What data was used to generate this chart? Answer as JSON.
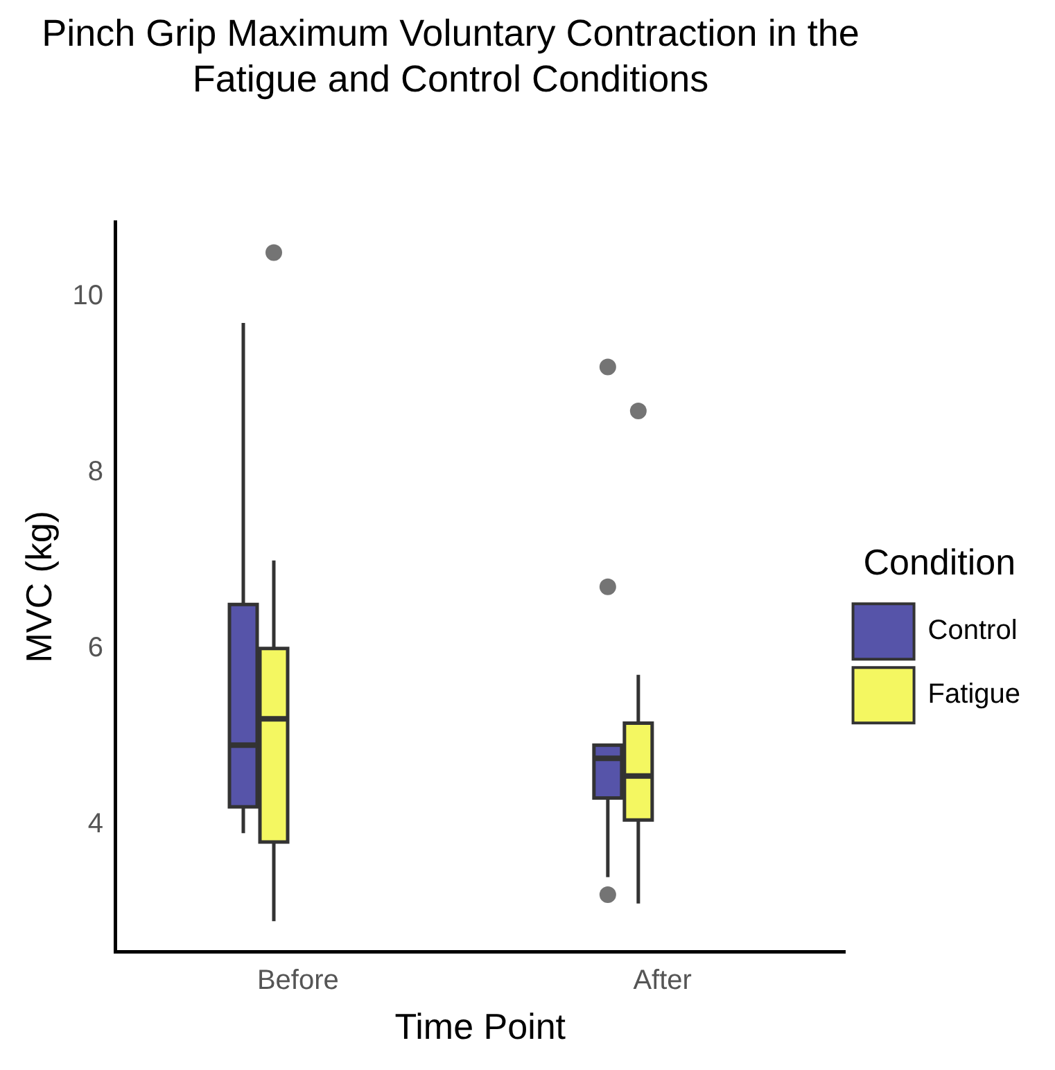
{
  "chart_data": {
    "type": "box",
    "title": "Pinch Grip Maximum Voluntary Contraction in the Fatigue and Control Conditions",
    "xlabel": "Time Point",
    "ylabel": "MVC (kg)",
    "legend_title": "Condition",
    "legend": "right",
    "grid": false,
    "categories": [
      "Before",
      "After"
    ],
    "ylim": [
      2.55,
      10.85
    ],
    "yticks": [
      4,
      6,
      8,
      10
    ],
    "series": [
      {
        "name": "Control",
        "color": "#5654a9",
        "boxes": [
          {
            "low": 3.9,
            "q1": 4.2,
            "median": 4.9,
            "q3": 6.5,
            "high": 9.7
          },
          {
            "low": 3.4,
            "q1": 4.3,
            "median": 4.75,
            "q3": 4.9,
            "high": 4.9,
            "outliers": [
              9.2,
              6.7,
              3.2
            ]
          }
        ]
      },
      {
        "name": "Fatigue",
        "color": "#f4f761",
        "boxes": [
          {
            "low": 2.9,
            "q1": 3.8,
            "median": 5.2,
            "q3": 6.0,
            "high": 7.0,
            "outliers": [
              10.5
            ]
          },
          {
            "low": 3.1,
            "q1": 4.05,
            "median": 4.55,
            "q3": 5.15,
            "high": 5.7,
            "outliers": [
              8.7
            ]
          }
        ]
      }
    ]
  }
}
